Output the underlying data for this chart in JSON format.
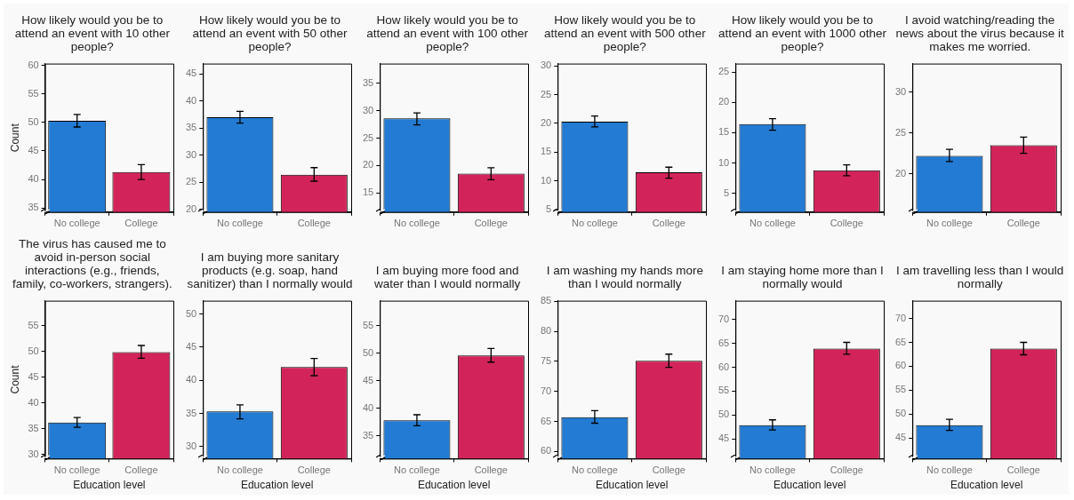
{
  "chart_data": [
    {
      "type": "bar",
      "title": "How likely would you be to attend an event with 10 other people?",
      "ylabel": "Count",
      "categories": [
        "No college",
        "College"
      ],
      "values": [
        50.3,
        41.3
      ],
      "colors": [
        "#237bd3",
        "#d2245a"
      ],
      "errors": [
        [
          49.2,
          51.4
        ],
        [
          40.0,
          42.6
        ]
      ],
      "ylim": [
        34.3,
        60.3
      ],
      "yticks": [
        35,
        40,
        45,
        50,
        55,
        60
      ]
    },
    {
      "type": "bar",
      "title": "How likely would you be to attend an event with 50 other people?",
      "categories": [
        "No college",
        "College"
      ],
      "values": [
        37.0,
        26.4
      ],
      "colors": [
        "#237bd3",
        "#d2245a"
      ],
      "errors": [
        [
          35.9,
          38.1
        ],
        [
          25.2,
          27.7
        ]
      ],
      "ylim": [
        19.5,
        46.9
      ],
      "yticks": [
        20,
        25,
        30,
        35,
        40,
        45
      ]
    },
    {
      "type": "bar",
      "title": "How likely would you be to attend an event with 100 other people?",
      "categories": [
        "No college",
        "College"
      ],
      "values": [
        28.6,
        18.5
      ],
      "colors": [
        "#237bd3",
        "#d2245a"
      ],
      "errors": [
        [
          27.4,
          29.6
        ],
        [
          17.4,
          19.6
        ]
      ],
      "ylim": [
        11.5,
        38.6
      ],
      "yticks": [
        15,
        20,
        25,
        30,
        35
      ]
    },
    {
      "type": "bar",
      "title": "How likely would you be to attend an event with 500 other people?",
      "categories": [
        "No college",
        "College"
      ],
      "values": [
        20.3,
        11.5
      ],
      "colors": [
        "#237bd3",
        "#d2245a"
      ],
      "errors": [
        [
          19.4,
          21.3
        ],
        [
          10.5,
          12.4
        ]
      ],
      "ylim": [
        4.6,
        30.4
      ],
      "yticks": [
        5,
        10,
        15,
        20,
        25,
        30
      ]
    },
    {
      "type": "bar",
      "title": "How likely would you be to attend an event with 1000 other people?",
      "categories": [
        "No college",
        "College"
      ],
      "values": [
        16.4,
        8.8
      ],
      "colors": [
        "#237bd3",
        "#d2245a"
      ],
      "errors": [
        [
          15.4,
          17.3
        ],
        [
          7.9,
          9.7
        ]
      ],
      "ylim": [
        1.9,
        26.4
      ],
      "yticks": [
        5,
        10,
        15,
        20,
        25
      ]
    },
    {
      "type": "bar",
      "title": "I avoid watching/reading the news about the virus because it makes me worried.",
      "categories": [
        "No college",
        "College"
      ],
      "values": [
        22.2,
        23.5
      ],
      "colors": [
        "#237bd3",
        "#d2245a"
      ],
      "errors": [
        [
          21.5,
          23.0
        ],
        [
          22.5,
          24.5
        ]
      ],
      "ylim": [
        15.3,
        33.5
      ],
      "yticks": [
        20,
        25,
        30
      ]
    },
    {
      "type": "bar",
      "title": "The virus has caused me to avoid in-person social interactions (e.g., friends, family, co-workers, strangers).",
      "xlabel": "Education level",
      "ylabel": "Count",
      "categories": [
        "No college",
        "College"
      ],
      "values": [
        36.2,
        49.9
      ],
      "colors": [
        "#237bd3",
        "#d2245a"
      ],
      "errors": [
        [
          35.3,
          37.2
        ],
        [
          48.7,
          51.2
        ]
      ],
      "ylim": [
        29.2,
        59.9
      ],
      "yticks": [
        30,
        35,
        40,
        45,
        50,
        55
      ]
    },
    {
      "type": "bar",
      "title": "I am buying more sanitary products (e.g. soap, hand sanitizer) than I normally would",
      "xlabel": "Education level",
      "categories": [
        "No college",
        "College"
      ],
      "values": [
        35.3,
        42.0
      ],
      "colors": [
        "#237bd3",
        "#d2245a"
      ],
      "errors": [
        [
          34.2,
          36.3
        ],
        [
          40.7,
          43.3
        ]
      ],
      "ylim": [
        28.2,
        52.0
      ],
      "yticks": [
        30,
        35,
        40,
        45,
        50
      ]
    },
    {
      "type": "bar",
      "title": "I am buying more food and water than I would normally",
      "xlabel": "Education level",
      "categories": [
        "No college",
        "College"
      ],
      "values": [
        37.8,
        49.6
      ],
      "colors": [
        "#237bd3",
        "#d2245a"
      ],
      "errors": [
        [
          36.8,
          38.8
        ],
        [
          48.4,
          50.9
        ]
      ],
      "ylim": [
        30.8,
        59.6
      ],
      "yticks": [
        35,
        40,
        45,
        50,
        55
      ]
    },
    {
      "type": "bar",
      "title": "I am washing my hands more than I would normally",
      "xlabel": "Education level",
      "categories": [
        "No college",
        "College"
      ],
      "values": [
        65.7,
        75.1
      ],
      "colors": [
        "#237bd3",
        "#d2245a"
      ],
      "errors": [
        [
          64.7,
          66.8
        ],
        [
          74.0,
          76.2
        ]
      ],
      "ylim": [
        58.8,
        85.1
      ],
      "yticks": [
        60,
        65,
        70,
        75,
        80,
        85
      ]
    },
    {
      "type": "bar",
      "title": "I am staying home more than I normally would",
      "xlabel": "Education level",
      "categories": [
        "No college",
        "College"
      ],
      "values": [
        47.9,
        63.9
      ],
      "colors": [
        "#237bd3",
        "#d2245a"
      ],
      "errors": [
        [
          46.9,
          49.0
        ],
        [
          62.7,
          65.2
        ]
      ],
      "ylim": [
        40.9,
        73.9
      ],
      "yticks": [
        45,
        50,
        55,
        60,
        65,
        70
      ]
    },
    {
      "type": "bar",
      "title": "I am travelling less than I would normally",
      "xlabel": "Education level",
      "categories": [
        "No college",
        "College"
      ],
      "values": [
        47.7,
        63.7
      ],
      "colors": [
        "#237bd3",
        "#d2245a"
      ],
      "errors": [
        [
          46.6,
          48.9
        ],
        [
          62.4,
          65.0
        ]
      ],
      "ylim": [
        40.7,
        73.7
      ],
      "yticks": [
        45,
        50,
        55,
        60,
        65,
        70
      ]
    }
  ]
}
